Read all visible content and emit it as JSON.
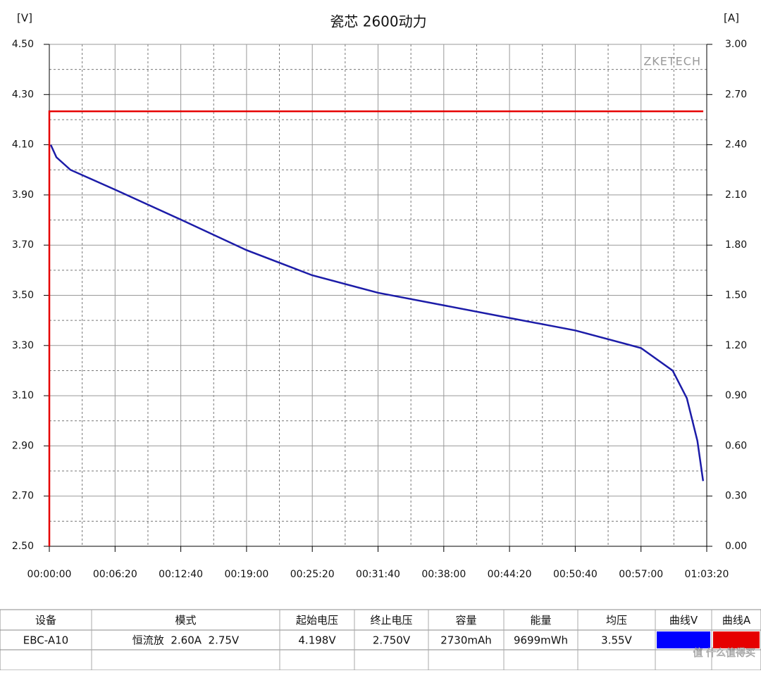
{
  "chart_data": {
    "type": "line",
    "title": "瓷芯 2600动力",
    "y_unit_label": "[V]",
    "y2_unit_label": "[A]",
    "watermark": "ZKETECH",
    "xlim": [
      0,
      3800
    ],
    "xticks": [
      {
        "value": 0,
        "label": "00:00:00"
      },
      {
        "value": 380,
        "label": "00:06:20"
      },
      {
        "value": 760,
        "label": "00:12:40"
      },
      {
        "value": 1140,
        "label": "00:19:00"
      },
      {
        "value": 1520,
        "label": "00:25:20"
      },
      {
        "value": 1900,
        "label": "00:31:40"
      },
      {
        "value": 2280,
        "label": "00:38:00"
      },
      {
        "value": 2660,
        "label": "00:44:20"
      },
      {
        "value": 3040,
        "label": "00:50:40"
      },
      {
        "value": 3420,
        "label": "00:57:00"
      },
      {
        "value": 3800,
        "label": "01:03:20"
      }
    ],
    "ylim": [
      2.5,
      4.5
    ],
    "yticks": [
      {
        "value": 2.5,
        "label": "2.50"
      },
      {
        "value": 2.7,
        "label": "2.70"
      },
      {
        "value": 2.9,
        "label": "2.90"
      },
      {
        "value": 3.1,
        "label": "3.10"
      },
      {
        "value": 3.3,
        "label": "3.30"
      },
      {
        "value": 3.5,
        "label": "3.50"
      },
      {
        "value": 3.7,
        "label": "3.70"
      },
      {
        "value": 3.9,
        "label": "3.90"
      },
      {
        "value": 4.1,
        "label": "4.10"
      },
      {
        "value": 4.3,
        "label": "4.30"
      },
      {
        "value": 4.5,
        "label": "4.50"
      }
    ],
    "y2lim": [
      0,
      3
    ],
    "y2ticks": [
      {
        "value": 0,
        "label": "0.00"
      },
      {
        "value": 0.3,
        "label": "0.30"
      },
      {
        "value": 0.6,
        "label": "0.60"
      },
      {
        "value": 0.9,
        "label": "0.90"
      },
      {
        "value": 1.2,
        "label": "1.20"
      },
      {
        "value": 1.5,
        "label": "1.50"
      },
      {
        "value": 1.8,
        "label": "1.80"
      },
      {
        "value": 2.1,
        "label": "2.10"
      },
      {
        "value": 2.4,
        "label": "2.40"
      },
      {
        "value": 2.7,
        "label": "2.70"
      },
      {
        "value": 3,
        "label": "3.00"
      }
    ],
    "grid": true,
    "series": [
      {
        "color": "#1c1ca8",
        "x": [
          8,
          41,
          122,
          383,
          765,
          1140,
          1519,
          1901,
          2280,
          2659,
          3041,
          3420,
          3603,
          3685,
          3746,
          3779
        ],
        "values": [
          4.1,
          4.05,
          4.0,
          3.92,
          3.8,
          3.68,
          3.58,
          3.51,
          3.46,
          3.41,
          3.36,
          3.29,
          3.2,
          3.09,
          2.92,
          2.76
        ]
      },
      {
        "color": "#e60000",
        "axis": "y2",
        "x": [
          0,
          0,
          3780
        ],
        "values": [
          0,
          2.6,
          2.6
        ]
      }
    ]
  },
  "table": {
    "header": [
      "设备",
      "模式",
      "起始电压",
      "终止电压",
      "容量",
      "能量",
      "均压",
      "曲线V",
      "曲线A"
    ],
    "rows": [
      [
        "EBC-A10",
        "恒流放  2.60A  2.75V",
        "4.198V",
        "2.750V",
        "2730mAh",
        "9699mWh",
        "3.55V"
      ]
    ]
  },
  "footer_watermark": "值 什么值得买"
}
